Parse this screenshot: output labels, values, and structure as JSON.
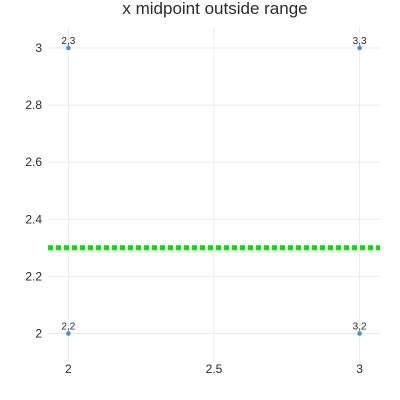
{
  "chart_data": {
    "type": "scatter",
    "title": "x midpoint outside range",
    "xlabel": "",
    "ylabel": "",
    "xlim": [
      1.93,
      3.07
    ],
    "ylim": [
      1.9,
      3.07
    ],
    "x_ticks": [
      2,
      2.5,
      3
    ],
    "x_tick_labels": [
      "2",
      "2.5",
      "3"
    ],
    "y_ticks": [
      2,
      2.2,
      2.4,
      2.6,
      2.8,
      3
    ],
    "y_tick_labels": [
      "2",
      "2.2",
      "2.4",
      "2.6",
      "2.8",
      "3"
    ],
    "grid": true,
    "points": [
      {
        "x": 2,
        "y": 3,
        "label": "2,3"
      },
      {
        "x": 3,
        "y": 3,
        "label": "3,3"
      },
      {
        "x": 2,
        "y": 2,
        "label": "2,2"
      },
      {
        "x": 3,
        "y": 2,
        "label": "3,2"
      }
    ],
    "reference_line": {
      "orientation": "horizontal",
      "y": 2.3,
      "style": "dotted"
    },
    "colors": {
      "marker": "#4a90d9",
      "reference_line": "#00e600",
      "grid": "#ebebeb",
      "text": "#2a2a2a"
    }
  }
}
